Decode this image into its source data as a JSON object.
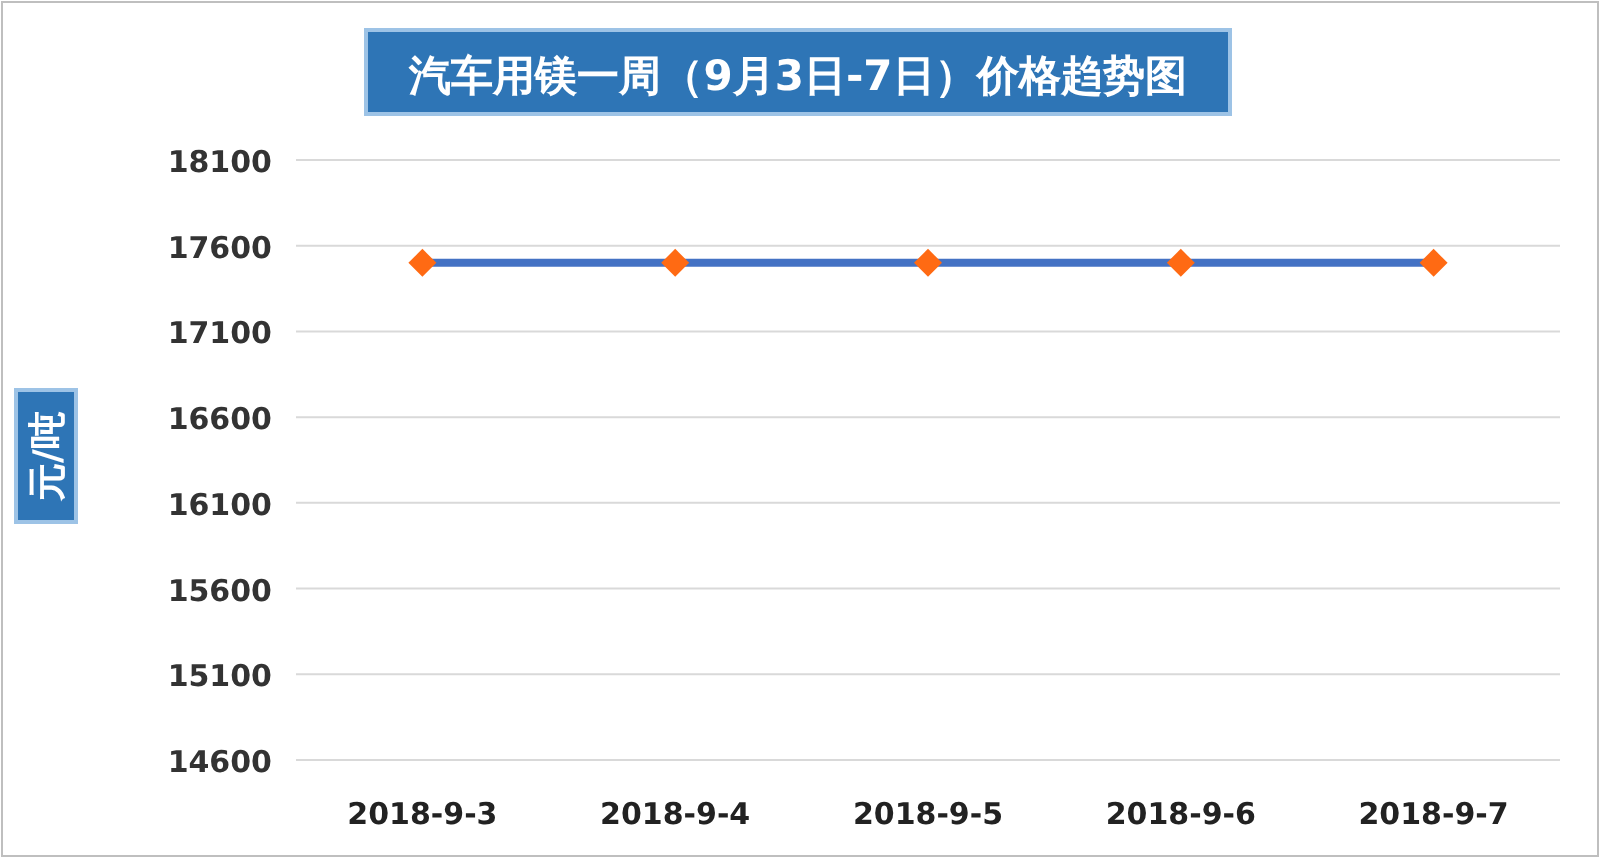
{
  "chart_data": {
    "type": "line",
    "title": "汽车用镁一周（9月3日-7日）价格趋势图",
    "ylabel": "元/吨",
    "categories": [
      "2018-9-3",
      "2018-9-4",
      "2018-9-5",
      "2018-9-6",
      "2018-9-7"
    ],
    "series": [
      {
        "color": "#4472c4",
        "values": [
          17500,
          17500,
          17500,
          17500,
          17500
        ]
      }
    ],
    "ylim": [
      14600,
      18100
    ],
    "yticks": [
      14600,
      15100,
      15600,
      16100,
      16600,
      17100,
      17600,
      18100
    ],
    "grid": "y",
    "marker": "diamond",
    "line_style": "solid"
  }
}
